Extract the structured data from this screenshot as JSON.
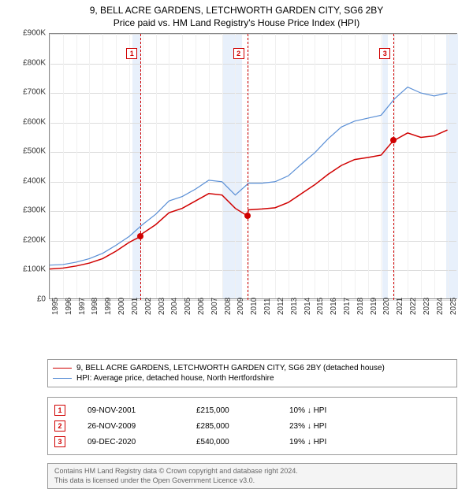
{
  "title": "9, BELL ACRE GARDENS, LETCHWORTH GARDEN CITY, SG6 2BY",
  "subtitle": "Price paid vs. HM Land Registry's House Price Index (HPI)",
  "chart": {
    "type": "line",
    "background_color": "#ffffff",
    "grid_color": "#dcdcdc",
    "axis_color": "#888888",
    "xlim": [
      1995,
      2025.8
    ],
    "ylim": [
      0,
      900000
    ],
    "yticks": [
      0,
      100000,
      200000,
      300000,
      400000,
      500000,
      600000,
      700000,
      800000,
      900000
    ],
    "ytick_labels": [
      "£0",
      "£100K",
      "£200K",
      "£300K",
      "£400K",
      "£500K",
      "£600K",
      "£700K",
      "£800K",
      "£900K"
    ],
    "xticks": [
      1995,
      1996,
      1997,
      1998,
      1999,
      2000,
      2001,
      2002,
      2003,
      2004,
      2005,
      2006,
      2007,
      2008,
      2009,
      2010,
      2011,
      2012,
      2013,
      2014,
      2015,
      2016,
      2017,
      2018,
      2019,
      2020,
      2021,
      2022,
      2023,
      2024,
      2025
    ],
    "title_fontsize": 12,
    "tick_fontsize": 10,
    "recession_bands": [
      {
        "start": 2001.25,
        "end": 2001.92,
        "color": "#e8f0fb"
      },
      {
        "start": 2008.0,
        "end": 2009.5,
        "color": "#e8f0fb"
      },
      {
        "start": 2020.1,
        "end": 2020.5,
        "color": "#e8f0fb"
      },
      {
        "start": 2024.9,
        "end": 2025.8,
        "color": "#e8f0fb"
      }
    ],
    "series": [
      {
        "name": "hpi",
        "label": "HPI: Average price, detached house, North Hertfordshire",
        "color": "#5a8fd6",
        "line_width": 1.2,
        "points": [
          [
            1995,
            118000
          ],
          [
            1996,
            120000
          ],
          [
            1997,
            128000
          ],
          [
            1998,
            140000
          ],
          [
            1999,
            158000
          ],
          [
            2000,
            185000
          ],
          [
            2001,
            215000
          ],
          [
            2002,
            255000
          ],
          [
            2003,
            290000
          ],
          [
            2004,
            335000
          ],
          [
            2005,
            350000
          ],
          [
            2006,
            375000
          ],
          [
            2007,
            405000
          ],
          [
            2008,
            400000
          ],
          [
            2009,
            355000
          ],
          [
            2010,
            395000
          ],
          [
            2011,
            395000
          ],
          [
            2012,
            400000
          ],
          [
            2013,
            420000
          ],
          [
            2014,
            460000
          ],
          [
            2015,
            498000
          ],
          [
            2016,
            545000
          ],
          [
            2017,
            585000
          ],
          [
            2018,
            605000
          ],
          [
            2019,
            615000
          ],
          [
            2020,
            625000
          ],
          [
            2021,
            680000
          ],
          [
            2022,
            720000
          ],
          [
            2023,
            700000
          ],
          [
            2024,
            690000
          ],
          [
            2025,
            700000
          ]
        ]
      },
      {
        "name": "property",
        "label": "9, BELL ACRE GARDENS, LETCHWORTH GARDEN CITY, SG6 2BY (detached house)",
        "color": "#d00000",
        "line_width": 1.5,
        "points": [
          [
            1995,
            105000
          ],
          [
            1996,
            108000
          ],
          [
            1997,
            115000
          ],
          [
            1998,
            125000
          ],
          [
            1999,
            140000
          ],
          [
            2000,
            165000
          ],
          [
            2001,
            195000
          ],
          [
            2001.85,
            215000
          ],
          [
            2002,
            225000
          ],
          [
            2003,
            255000
          ],
          [
            2004,
            295000
          ],
          [
            2005,
            310000
          ],
          [
            2006,
            335000
          ],
          [
            2007,
            360000
          ],
          [
            2008,
            355000
          ],
          [
            2009,
            310000
          ],
          [
            2009.9,
            285000
          ],
          [
            2010,
            305000
          ],
          [
            2011,
            308000
          ],
          [
            2012,
            312000
          ],
          [
            2013,
            330000
          ],
          [
            2014,
            360000
          ],
          [
            2015,
            390000
          ],
          [
            2016,
            425000
          ],
          [
            2017,
            455000
          ],
          [
            2018,
            475000
          ],
          [
            2019,
            482000
          ],
          [
            2020,
            490000
          ],
          [
            2020.94,
            540000
          ],
          [
            2021,
            540000
          ],
          [
            2022,
            565000
          ],
          [
            2023,
            550000
          ],
          [
            2024,
            555000
          ],
          [
            2025,
            575000
          ]
        ]
      }
    ],
    "markers": [
      {
        "n": "1",
        "x": 2001.85,
        "y": 215000,
        "color": "#d00000"
      },
      {
        "n": "2",
        "x": 2009.9,
        "y": 285000,
        "color": "#d00000"
      },
      {
        "n": "3",
        "x": 2020.94,
        "y": 540000,
        "color": "#d00000"
      }
    ]
  },
  "legend": {
    "items": [
      {
        "color": "#d00000",
        "label": "9, BELL ACRE GARDENS, LETCHWORTH GARDEN CITY, SG6 2BY (detached house)"
      },
      {
        "color": "#5a8fd6",
        "label": "HPI: Average price, detached house, North Hertfordshire"
      }
    ]
  },
  "events": [
    {
      "n": "1",
      "date": "09-NOV-2001",
      "price": "£215,000",
      "pct": "10% ↓ HPI"
    },
    {
      "n": "2",
      "date": "26-NOV-2009",
      "price": "£285,000",
      "pct": "23% ↓ HPI"
    },
    {
      "n": "3",
      "date": "09-DEC-2020",
      "price": "£540,000",
      "pct": "19% ↓ HPI"
    }
  ],
  "attribution": {
    "line1": "Contains HM Land Registry data © Crown copyright and database right 2024.",
    "line2": "This data is licensed under the Open Government Licence v3.0."
  }
}
